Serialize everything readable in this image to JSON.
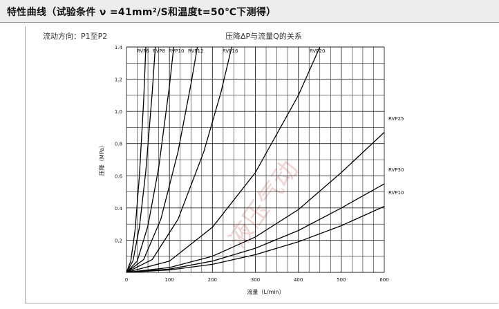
{
  "header": {
    "title": "特性曲线（试验条件 ν =41mm²/S和温度t=50℃下测得）"
  },
  "flow_direction": "流动方向：P1至P2",
  "watermark": "液压气动",
  "chart_data": {
    "type": "line",
    "title": "压降ΔP与流量Q的关系",
    "xlabel": "流量（L/min）",
    "ylabel": "压降（MPa）",
    "xlim": [
      0,
      600
    ],
    "ylim": [
      0,
      1.4
    ],
    "x_ticks": [
      "0",
      "100",
      "200",
      "300",
      "400",
      "500",
      "600"
    ],
    "y_ticks": [
      "0.2",
      "0.4",
      "0.6",
      "0.8",
      "1.0",
      "1.2",
      "1.4"
    ],
    "grid": true,
    "series": [
      {
        "name": "RVP6",
        "x": [
          0,
          10,
          20,
          30,
          40,
          45
        ],
        "y": [
          0,
          0.07,
          0.26,
          0.6,
          1.07,
          1.4
        ]
      },
      {
        "name": "RVP8",
        "x": [
          0,
          15,
          30,
          45,
          60,
          67
        ],
        "y": [
          0,
          0.07,
          0.28,
          0.63,
          1.12,
          1.4
        ]
      },
      {
        "name": "RVP10",
        "x": [
          0,
          25,
          50,
          75,
          100,
          110
        ],
        "y": [
          0,
          0.07,
          0.29,
          0.65,
          1.16,
          1.4
        ]
      },
      {
        "name": "RVP12",
        "x": [
          0,
          40,
          80,
          120,
          150,
          165
        ],
        "y": [
          0,
          0.08,
          0.33,
          0.75,
          1.17,
          1.4
        ]
      },
      {
        "name": "RVP16",
        "x": [
          0,
          60,
          120,
          180,
          220,
          245
        ],
        "y": [
          0,
          0.08,
          0.33,
          0.75,
          1.12,
          1.4
        ]
      },
      {
        "name": "RVP20",
        "x": [
          0,
          100,
          200,
          300,
          400,
          450
        ],
        "y": [
          0,
          0.07,
          0.28,
          0.62,
          1.1,
          1.4
        ]
      },
      {
        "name": "RVP25",
        "x": [
          0,
          100,
          200,
          300,
          400,
          500,
          600
        ],
        "y": [
          0,
          0.03,
          0.1,
          0.22,
          0.39,
          0.62,
          0.87
        ]
      },
      {
        "name": "RVP30",
        "x": [
          0,
          100,
          200,
          300,
          400,
          500,
          600
        ],
        "y": [
          0,
          0.02,
          0.07,
          0.15,
          0.26,
          0.4,
          0.55
        ]
      },
      {
        "name": "RVP10",
        "x": [
          0,
          100,
          200,
          300,
          400,
          500,
          600
        ],
        "y": [
          0,
          0.015,
          0.05,
          0.11,
          0.19,
          0.29,
          0.41
        ]
      }
    ]
  }
}
